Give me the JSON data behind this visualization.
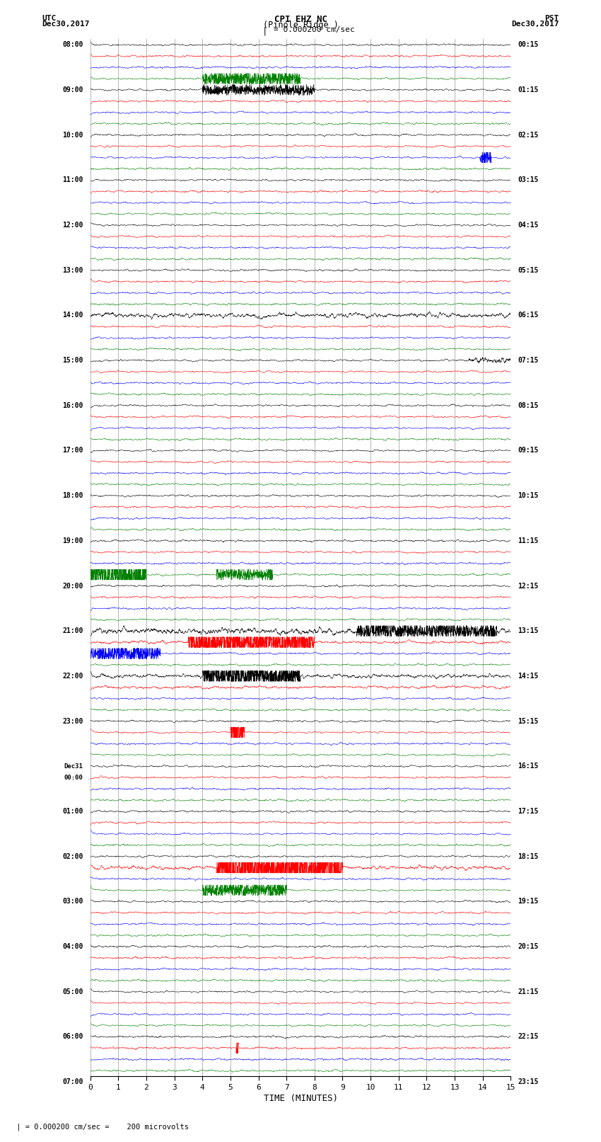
{
  "title_line1": "CPI EHZ NC",
  "title_line2": "(Pinole Ridge )",
  "scale_text": "= 0.000200 cm/sec",
  "left_timezone": "UTC",
  "left_date": "Dec30,2017",
  "right_timezone": "PST",
  "right_date": "Dec30,2017",
  "bottom_label": "TIME (MINUTES)",
  "bottom_note": "= 0.000200 cm/sec =    200 microvolts",
  "utc_labels": [
    "08:00",
    "",
    "",
    "",
    "09:00",
    "",
    "",
    "",
    "10:00",
    "",
    "",
    "",
    "11:00",
    "",
    "",
    "",
    "12:00",
    "",
    "",
    "",
    "13:00",
    "",
    "",
    "",
    "14:00",
    "",
    "",
    "",
    "15:00",
    "",
    "",
    "",
    "16:00",
    "",
    "",
    "",
    "17:00",
    "",
    "",
    "",
    "18:00",
    "",
    "",
    "",
    "19:00",
    "",
    "",
    "",
    "20:00",
    "",
    "",
    "",
    "21:00",
    "",
    "",
    "",
    "22:00",
    "",
    "",
    "",
    "23:00",
    "",
    "",
    "",
    "Dec31",
    "00:00",
    "",
    "",
    "01:00",
    "",
    "",
    "",
    "02:00",
    "",
    "",
    "",
    "03:00",
    "",
    "",
    "",
    "04:00",
    "",
    "",
    "",
    "05:00",
    "",
    "",
    "",
    "06:00",
    "",
    "",
    "",
    "07:00",
    "",
    "",
    ""
  ],
  "pst_labels": [
    "00:15",
    "",
    "",
    "",
    "01:15",
    "",
    "",
    "",
    "02:15",
    "",
    "",
    "",
    "03:15",
    "",
    "",
    "",
    "04:15",
    "",
    "",
    "",
    "05:15",
    "",
    "",
    "",
    "06:15",
    "",
    "",
    "",
    "07:15",
    "",
    "",
    "",
    "08:15",
    "",
    "",
    "",
    "09:15",
    "",
    "",
    "",
    "10:15",
    "",
    "",
    "",
    "11:15",
    "",
    "",
    "",
    "12:15",
    "",
    "",
    "",
    "13:15",
    "",
    "",
    "",
    "14:15",
    "",
    "",
    "",
    "15:15",
    "",
    "",
    "",
    "16:15",
    "",
    "",
    "",
    "17:15",
    "",
    "",
    "",
    "18:15",
    "",
    "",
    "",
    "19:15",
    "",
    "",
    "",
    "20:15",
    "",
    "",
    "",
    "21:15",
    "",
    "",
    "",
    "22:15",
    "",
    "",
    "",
    "23:15",
    "",
    "",
    ""
  ],
  "colors": [
    "black",
    "red",
    "blue",
    "green"
  ],
  "bg_color": "#ffffff",
  "grid_color": "#888888",
  "n_rows": 92,
  "time_minutes": 15,
  "noise_base": 0.05
}
